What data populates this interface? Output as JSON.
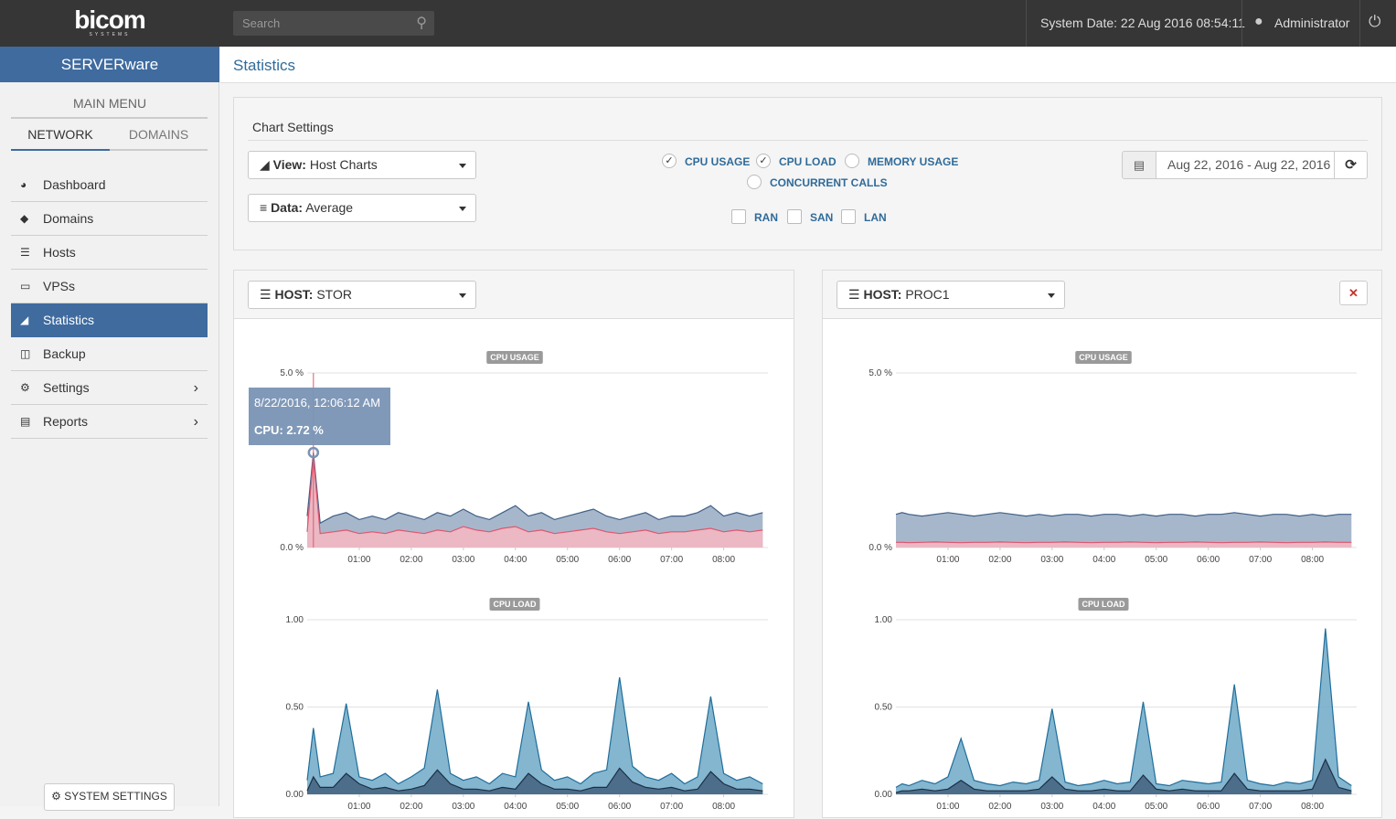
{
  "header": {
    "logo": "bicom",
    "logo_sub": "SYSTEMS",
    "search_placeholder": "Search",
    "system_date": "System Date: 22 Aug 2016 08:54:11",
    "user": "Administrator"
  },
  "sidebar": {
    "product": "SERVERware",
    "menu_title": "MAIN MENU",
    "tabs": [
      "NETWORK",
      "DOMAINS"
    ],
    "items": [
      "Dashboard",
      "Domains",
      "Hosts",
      "VPSs",
      "Statistics",
      "Backup",
      "Settings",
      "Reports"
    ],
    "system_settings": "SYSTEM SETTINGS"
  },
  "page_title": "Statistics",
  "settings": {
    "title": "Chart Settings",
    "view_label": "View:",
    "view": "Host Charts",
    "data_label": "Data:",
    "data": "Average",
    "metrics": [
      {
        "label": "CPU USAGE",
        "checked": true
      },
      {
        "label": "CPU LOAD",
        "checked": true
      },
      {
        "label": "MEMORY USAGE",
        "checked": false
      },
      {
        "label": "CONCURRENT CALLS",
        "checked": false
      }
    ],
    "networks": [
      "RAN",
      "SAN",
      "LAN"
    ],
    "date_range": "Aug 22, 2016 - Aug 22, 2016"
  },
  "panels": [
    {
      "host_label": "HOST:",
      "host": "STOR"
    },
    {
      "host_label": "HOST:",
      "host": "PROC1"
    }
  ],
  "chart_data": [
    {
      "type": "area",
      "title": "CPU USAGE",
      "x": [
        0,
        0.12,
        0.25,
        0.5,
        0.75,
        1,
        1.25,
        1.5,
        1.75,
        2,
        2.25,
        2.5,
        2.75,
        3,
        3.25,
        3.5,
        3.75,
        4,
        4.25,
        4.5,
        4.75,
        5,
        5.25,
        5.5,
        5.75,
        6,
        6.25,
        6.5,
        6.75,
        7,
        7.25,
        7.5,
        7.75,
        8,
        8.25,
        8.5,
        8.75
      ],
      "series": [
        {
          "color": "#3f5f86",
          "fill": "#98aac2",
          "values": [
            0.9,
            2.72,
            0.7,
            0.9,
            1.0,
            0.8,
            0.9,
            0.8,
            1.0,
            0.9,
            0.8,
            1.0,
            0.9,
            1.1,
            0.9,
            0.8,
            1.0,
            1.2,
            0.9,
            1.0,
            0.8,
            0.9,
            1.0,
            1.1,
            0.9,
            0.8,
            0.9,
            1.0,
            0.8,
            0.9,
            0.9,
            1.0,
            1.2,
            0.9,
            1.0,
            0.9,
            1.0
          ]
        },
        {
          "color": "#e0566e",
          "fill": "#f7b9c3",
          "values": [
            0.45,
            2.6,
            0.4,
            0.45,
            0.5,
            0.4,
            0.45,
            0.4,
            0.5,
            0.45,
            0.4,
            0.5,
            0.45,
            0.6,
            0.5,
            0.45,
            0.55,
            0.6,
            0.45,
            0.5,
            0.4,
            0.45,
            0.5,
            0.55,
            0.45,
            0.4,
            0.45,
            0.5,
            0.4,
            0.45,
            0.45,
            0.5,
            0.55,
            0.45,
            0.5,
            0.45,
            0.5
          ]
        }
      ],
      "xlim": [
        0,
        8.85
      ],
      "xticks": [
        {
          "value": 1,
          "label": "01:00"
        },
        {
          "value": 2,
          "label": "02:00"
        },
        {
          "value": 3,
          "label": "03:00"
        },
        {
          "value": 4,
          "label": "04:00"
        },
        {
          "value": 5,
          "label": "05:00"
        },
        {
          "value": 6,
          "label": "06:00"
        },
        {
          "value": 7,
          "label": "07:00"
        },
        {
          "value": 8,
          "label": "08:00"
        }
      ],
      "ylim": [
        0,
        5
      ],
      "yticks": [
        {
          "value": 0,
          "label": "0.0 %"
        },
        {
          "value": 5,
          "label": "5.0 %"
        }
      ],
      "grid": true,
      "tooltip": {
        "title": "8/22/2016, 12:06:12 AM",
        "text": "CPU: 2.72 %",
        "x": 0.12,
        "y": 2.72
      }
    },
    {
      "type": "area",
      "title": "CPU LOAD",
      "x": [
        0,
        0.12,
        0.25,
        0.5,
        0.75,
        1,
        1.25,
        1.5,
        1.75,
        2,
        2.25,
        2.5,
        2.75,
        3,
        3.25,
        3.5,
        3.75,
        4,
        4.25,
        4.5,
        4.75,
        5,
        5.25,
        5.5,
        5.75,
        6,
        6.25,
        6.5,
        6.75,
        7,
        7.25,
        7.5,
        7.75,
        8,
        8.25,
        8.5,
        8.75
      ],
      "series": [
        {
          "color": "#1f6e9a",
          "fill": "#6fa9c8",
          "values": [
            0.08,
            0.38,
            0.1,
            0.12,
            0.52,
            0.1,
            0.08,
            0.12,
            0.06,
            0.1,
            0.15,
            0.6,
            0.12,
            0.08,
            0.1,
            0.06,
            0.12,
            0.1,
            0.53,
            0.14,
            0.08,
            0.1,
            0.06,
            0.12,
            0.14,
            0.67,
            0.16,
            0.1,
            0.08,
            0.12,
            0.06,
            0.1,
            0.56,
            0.12,
            0.08,
            0.1,
            0.06
          ]
        },
        {
          "color": "#1c2f45",
          "fill": "#42617f",
          "values": [
            0.02,
            0.1,
            0.04,
            0.04,
            0.12,
            0.06,
            0.03,
            0.04,
            0.02,
            0.03,
            0.05,
            0.14,
            0.06,
            0.03,
            0.03,
            0.02,
            0.04,
            0.03,
            0.12,
            0.06,
            0.03,
            0.03,
            0.02,
            0.04,
            0.04,
            0.15,
            0.07,
            0.04,
            0.03,
            0.04,
            0.02,
            0.03,
            0.13,
            0.06,
            0.03,
            0.03,
            0.02
          ]
        }
      ],
      "xlim": [
        0,
        8.85
      ],
      "xticks": [
        {
          "value": 1,
          "label": "01:00"
        },
        {
          "value": 2,
          "label": "02:00"
        },
        {
          "value": 3,
          "label": "03:00"
        },
        {
          "value": 4,
          "label": "04:00"
        },
        {
          "value": 5,
          "label": "05:00"
        },
        {
          "value": 6,
          "label": "06:00"
        },
        {
          "value": 7,
          "label": "07:00"
        },
        {
          "value": 8,
          "label": "08:00"
        }
      ],
      "ylim": [
        0,
        1
      ],
      "yticks": [
        {
          "value": 0,
          "label": "0.00"
        },
        {
          "value": 0.5,
          "label": "0.50"
        },
        {
          "value": 1,
          "label": "1.00"
        }
      ],
      "grid": true
    },
    {
      "type": "area",
      "title": "CPU USAGE",
      "x": [
        0,
        0.12,
        0.25,
        0.5,
        0.75,
        1,
        1.25,
        1.5,
        1.75,
        2,
        2.25,
        2.5,
        2.75,
        3,
        3.25,
        3.5,
        3.75,
        4,
        4.25,
        4.5,
        4.75,
        5,
        5.25,
        5.5,
        5.75,
        6,
        6.25,
        6.5,
        6.75,
        7,
        7.25,
        7.5,
        7.75,
        8,
        8.25,
        8.5,
        8.75
      ],
      "series": [
        {
          "color": "#3f5f86",
          "fill": "#98aac2",
          "values": [
            0.95,
            1.0,
            0.95,
            0.9,
            0.95,
            1.0,
            0.95,
            0.9,
            0.95,
            1.0,
            0.95,
            0.9,
            0.95,
            0.9,
            0.95,
            0.95,
            0.9,
            0.95,
            0.95,
            0.9,
            0.95,
            0.9,
            0.95,
            0.95,
            0.9,
            0.95,
            0.95,
            1.0,
            0.95,
            0.9,
            0.95,
            0.95,
            0.9,
            0.95,
            0.9,
            0.95,
            0.95
          ]
        },
        {
          "color": "#e0566e",
          "fill": "#f7b9c3",
          "values": [
            0.15,
            0.15,
            0.14,
            0.15,
            0.16,
            0.15,
            0.14,
            0.15,
            0.15,
            0.16,
            0.15,
            0.14,
            0.15,
            0.15,
            0.16,
            0.15,
            0.14,
            0.15,
            0.15,
            0.16,
            0.15,
            0.14,
            0.15,
            0.15,
            0.16,
            0.15,
            0.14,
            0.15,
            0.15,
            0.16,
            0.15,
            0.14,
            0.15,
            0.15,
            0.16,
            0.15,
            0.15
          ]
        }
      ],
      "xlim": [
        0,
        8.85
      ],
      "xticks": [
        {
          "value": 1,
          "label": "01:00"
        },
        {
          "value": 2,
          "label": "02:00"
        },
        {
          "value": 3,
          "label": "03:00"
        },
        {
          "value": 4,
          "label": "04:00"
        },
        {
          "value": 5,
          "label": "05:00"
        },
        {
          "value": 6,
          "label": "06:00"
        },
        {
          "value": 7,
          "label": "07:00"
        },
        {
          "value": 8,
          "label": "08:00"
        }
      ],
      "ylim": [
        0,
        5
      ],
      "yticks": [
        {
          "value": 0,
          "label": "0.0 %"
        },
        {
          "value": 5,
          "label": "5.0 %"
        }
      ],
      "grid": true
    },
    {
      "type": "area",
      "title": "CPU LOAD",
      "x": [
        0,
        0.12,
        0.25,
        0.5,
        0.75,
        1,
        1.25,
        1.5,
        1.75,
        2,
        2.25,
        2.5,
        2.75,
        3,
        3.25,
        3.5,
        3.75,
        4,
        4.25,
        4.5,
        4.75,
        5,
        5.25,
        5.5,
        5.75,
        6,
        6.25,
        6.5,
        6.75,
        7,
        7.25,
        7.5,
        7.75,
        8,
        8.25,
        8.5,
        8.75
      ],
      "series": [
        {
          "color": "#1f6e9a",
          "fill": "#6fa9c8",
          "values": [
            0.04,
            0.06,
            0.05,
            0.08,
            0.06,
            0.1,
            0.32,
            0.08,
            0.06,
            0.05,
            0.07,
            0.06,
            0.08,
            0.49,
            0.07,
            0.05,
            0.06,
            0.08,
            0.06,
            0.07,
            0.53,
            0.06,
            0.05,
            0.08,
            0.07,
            0.06,
            0.07,
            0.63,
            0.08,
            0.06,
            0.05,
            0.07,
            0.06,
            0.08,
            0.95,
            0.1,
            0.05
          ]
        },
        {
          "color": "#1c2f45",
          "fill": "#42617f",
          "values": [
            0.01,
            0.02,
            0.02,
            0.03,
            0.02,
            0.03,
            0.08,
            0.03,
            0.02,
            0.02,
            0.02,
            0.02,
            0.03,
            0.1,
            0.03,
            0.02,
            0.02,
            0.03,
            0.02,
            0.02,
            0.11,
            0.03,
            0.02,
            0.03,
            0.02,
            0.02,
            0.02,
            0.12,
            0.03,
            0.02,
            0.02,
            0.02,
            0.02,
            0.03,
            0.2,
            0.04,
            0.02
          ]
        }
      ],
      "xlim": [
        0,
        8.85
      ],
      "xticks": [
        {
          "value": 1,
          "label": "01:00"
        },
        {
          "value": 2,
          "label": "02:00"
        },
        {
          "value": 3,
          "label": "03:00"
        },
        {
          "value": 4,
          "label": "04:00"
        },
        {
          "value": 5,
          "label": "05:00"
        },
        {
          "value": 6,
          "label": "06:00"
        },
        {
          "value": 7,
          "label": "07:00"
        },
        {
          "value": 8,
          "label": "08:00"
        }
      ],
      "ylim": [
        0,
        1
      ],
      "yticks": [
        {
          "value": 0,
          "label": "0.00"
        },
        {
          "value": 0.5,
          "label": "0.50"
        },
        {
          "value": 1,
          "label": "1.00"
        }
      ],
      "grid": true
    }
  ]
}
